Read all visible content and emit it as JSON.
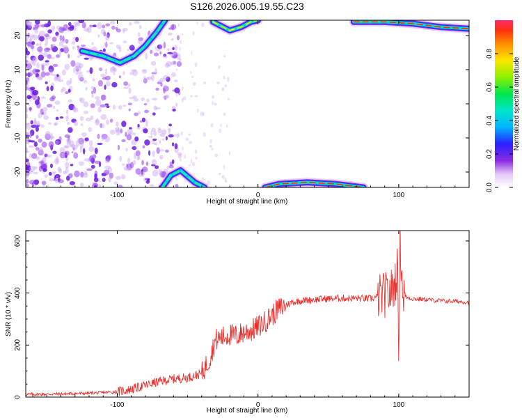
{
  "chart_data": [
    {
      "type": "heatmap",
      "title": "S126.2026.005.19.55.C23",
      "xlabel": "Height of straight line (km)",
      "ylabel": "Frequency (Hz)",
      "xlim": [
        -165,
        150
      ],
      "ylim": [
        -24.5,
        24.5
      ],
      "xticks": [
        -100,
        0,
        100
      ],
      "yticks": [
        -20,
        -10,
        0,
        10,
        20
      ],
      "colorbar": {
        "label": "Normalized spectral amplitude",
        "range": [
          0,
          1
        ],
        "ticks": [
          0.0,
          0.2,
          0.4,
          0.6,
          0.8
        ]
      },
      "ridges": [
        {
          "points": [
            [
              -125,
              15.5
            ],
            [
              -110,
              14
            ],
            [
              -98,
              12
            ],
            [
              -88,
              14
            ],
            [
              -80,
              17
            ],
            [
              -72,
              21
            ],
            [
              -66,
              24.5
            ]
          ],
          "amplitude": 0.35
        },
        {
          "points": [
            [
              -32,
              24
            ],
            [
              -20,
              21.5
            ],
            [
              -12,
              22.5
            ],
            [
              -5,
              24
            ],
            [
              0,
              24.5
            ]
          ],
          "amplitude": 0.5
        },
        {
          "points": [
            [
              68,
              24
            ],
            [
              90,
              24
            ],
            [
              110,
              23.5
            ],
            [
              130,
              22.5
            ],
            [
              150,
              22
            ]
          ],
          "amplitude": 0.85
        },
        {
          "points": [
            [
              -68,
              -24.5
            ],
            [
              -62,
              -21
            ],
            [
              -55,
              -19.5
            ],
            [
              -45,
              -23
            ],
            [
              -38,
              -24.5
            ]
          ],
          "amplitude": 0.4
        },
        {
          "points": [
            [
              5,
              -24.5
            ],
            [
              15,
              -23.5
            ],
            [
              35,
              -23
            ],
            [
              55,
              -23.5
            ],
            [
              75,
              -24.5
            ]
          ],
          "amplitude": 0.8
        }
      ]
    },
    {
      "type": "line",
      "xlabel": "Height of straight line (km)",
      "ylabel": "SNR (10 * v/v)",
      "xlim": [
        -165,
        150
      ],
      "ylim": [
        0,
        640
      ],
      "xticks": [
        -100,
        0,
        100
      ],
      "yticks": [
        0,
        200,
        400,
        600
      ],
      "color": "#e8302d",
      "series": [
        {
          "x": [
            -165,
            -140,
            -120,
            -100,
            -90,
            -80,
            -70,
            -60,
            -50,
            -40,
            -35,
            -30,
            -25,
            -20,
            -15,
            -10,
            -5,
            0,
            5,
            10,
            15,
            20,
            25,
            30,
            40,
            50,
            60,
            70,
            80,
            88,
            92,
            95,
            97,
            99,
            100,
            101,
            103,
            105,
            110,
            120,
            130,
            140,
            150
          ],
          "y": [
            10,
            12,
            15,
            20,
            30,
            45,
            60,
            70,
            75,
            90,
            140,
            220,
            230,
            240,
            235,
            250,
            255,
            270,
            290,
            315,
            340,
            355,
            365,
            370,
            375,
            378,
            380,
            380,
            378,
            390,
            395,
            410,
            430,
            500,
            200,
            600,
            400,
            385,
            378,
            375,
            370,
            368,
            365
          ]
        }
      ]
    }
  ]
}
